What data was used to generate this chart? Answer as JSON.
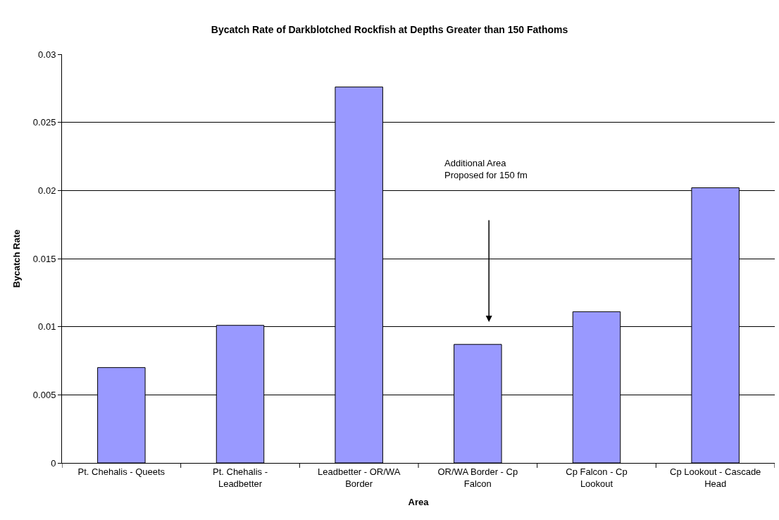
{
  "chart_data": {
    "type": "bar",
    "title": "Bycatch Rate of Darkblotched Rockfish at Depths Greater than 150 Fathoms",
    "xlabel": "Area",
    "ylabel": "Bycatch Rate",
    "categories": [
      "Pt. Chehalis - Queets",
      "Pt. Chehalis - Leadbetter",
      "Leadbetter - OR/WA Border",
      "OR/WA Border - Cp Falcon",
      "Cp Falcon - Cp Lookout",
      "Cp Lookout - Cascade Head"
    ],
    "values": [
      0.007,
      0.0101,
      0.0276,
      0.0087,
      0.0111,
      0.0202
    ],
    "color": "#9999ff",
    "ylim": [
      0,
      0.03
    ],
    "yticks": [
      0,
      0.005,
      0.01,
      0.015,
      0.02,
      0.025,
      0.03
    ],
    "grid": "y",
    "annotations": [
      "Additional Area\nProposed for 150 fm"
    ]
  }
}
